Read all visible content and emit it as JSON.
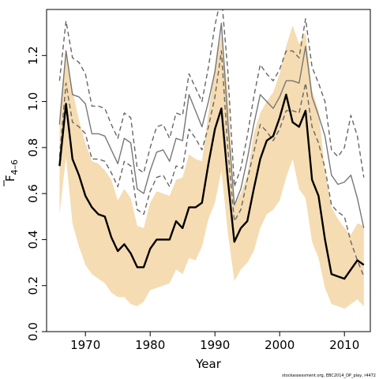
{
  "chart_data": {
    "type": "line",
    "title": "",
    "xlabel": "Year",
    "ylabel": {
      "main": "F",
      "subscript": "4–6"
    },
    "xlim": [
      1964,
      2014
    ],
    "ylim": [
      0,
      1.4
    ],
    "xticks": [
      1970,
      1980,
      1990,
      2000,
      2010
    ],
    "xtick_labels": [
      "1970",
      "1980",
      "1990",
      "2000",
      "2010"
    ],
    "yticks": [
      0.0,
      0.2,
      0.4,
      0.6,
      0.8,
      1.0,
      1.2
    ],
    "ytick_labels": [
      "0.0",
      "0.2",
      "0.4",
      "0.6",
      "0.8",
      "1.0",
      "1.2"
    ],
    "grid": false,
    "legend": "none",
    "colors": {
      "band": "#f5dcb2",
      "estimate": "#000000",
      "comparison": "#777777",
      "comparison_ci": "#666666"
    },
    "x": [
      1966,
      1967,
      1968,
      1969,
      1970,
      1971,
      1972,
      1973,
      1974,
      1975,
      1976,
      1977,
      1978,
      1979,
      1980,
      1981,
      1982,
      1983,
      1984,
      1985,
      1986,
      1987,
      1988,
      1989,
      1990,
      1991,
      1992,
      1993,
      1994,
      1995,
      1996,
      1997,
      1998,
      1999,
      2000,
      2001,
      2002,
      2003,
      2004,
      2005,
      2006,
      2007,
      2008,
      2009,
      2010,
      2011,
      2012,
      2013
    ],
    "series": [
      {
        "role": "band",
        "upper": [
          0.95,
          1.23,
          1.05,
          0.92,
          0.82,
          0.74,
          0.73,
          0.7,
          0.66,
          0.57,
          0.62,
          0.58,
          0.46,
          0.45,
          0.56,
          0.61,
          0.6,
          0.59,
          0.66,
          0.67,
          0.77,
          0.75,
          0.74,
          0.95,
          1.15,
          1.29,
          1.05,
          0.55,
          0.6,
          0.68,
          0.86,
          0.95,
          1.0,
          1.04,
          1.12,
          1.24,
          1.33,
          1.25,
          1.3,
          1.05,
          0.96,
          0.7,
          0.54,
          0.49,
          0.45,
          0.42,
          0.47,
          0.46
        ],
        "lower": [
          0.51,
          0.76,
          0.47,
          0.37,
          0.29,
          0.25,
          0.23,
          0.21,
          0.17,
          0.15,
          0.15,
          0.12,
          0.11,
          0.13,
          0.18,
          0.19,
          0.2,
          0.21,
          0.27,
          0.25,
          0.32,
          0.31,
          0.37,
          0.49,
          0.56,
          0.7,
          0.43,
          0.22,
          0.27,
          0.3,
          0.35,
          0.45,
          0.51,
          0.53,
          0.57,
          0.67,
          0.75,
          0.62,
          0.58,
          0.39,
          0.32,
          0.19,
          0.12,
          0.11,
          0.1,
          0.12,
          0.14,
          0.11
        ]
      },
      {
        "role": "estimate",
        "values": [
          0.72,
          0.99,
          0.75,
          0.68,
          0.59,
          0.54,
          0.51,
          0.5,
          0.41,
          0.35,
          0.38,
          0.34,
          0.28,
          0.28,
          0.36,
          0.4,
          0.4,
          0.4,
          0.48,
          0.45,
          0.54,
          0.54,
          0.56,
          0.73,
          0.88,
          0.97,
          0.66,
          0.39,
          0.45,
          0.48,
          0.62,
          0.75,
          0.83,
          0.85,
          0.93,
          1.03,
          0.91,
          0.89,
          0.96,
          0.66,
          0.59,
          0.4,
          0.25,
          0.24,
          0.23,
          0.27,
          0.31,
          0.29
        ]
      },
      {
        "role": "comparison",
        "values": [
          0.9,
          1.22,
          1.03,
          1.02,
          0.99,
          0.86,
          0.86,
          0.85,
          0.79,
          0.73,
          0.84,
          0.82,
          0.62,
          0.6,
          0.7,
          0.78,
          0.79,
          0.74,
          0.84,
          0.83,
          1.03,
          0.96,
          0.89,
          1.0,
          1.13,
          1.34,
          0.91,
          0.55,
          0.62,
          0.75,
          0.9,
          1.03,
          1.0,
          0.97,
          1.02,
          1.09,
          1.09,
          1.08,
          1.24,
          1.02,
          0.94,
          0.85,
          0.68,
          0.64,
          0.65,
          0.68,
          0.58,
          0.45
        ]
      },
      {
        "role": "comparison_upper",
        "values": [
          1.09,
          1.35,
          1.19,
          1.17,
          1.12,
          0.98,
          0.98,
          0.97,
          0.9,
          0.84,
          0.95,
          0.93,
          0.71,
          0.69,
          0.8,
          0.89,
          0.9,
          0.84,
          0.95,
          0.94,
          1.12,
          1.06,
          1.0,
          1.15,
          1.33,
          1.46,
          1.13,
          0.63,
          0.71,
          0.85,
          1.02,
          1.16,
          1.12,
          1.09,
          1.14,
          1.22,
          1.22,
          1.19,
          1.36,
          1.15,
          1.08,
          1.0,
          0.79,
          0.76,
          0.8,
          0.94,
          0.85,
          0.67
        ]
      },
      {
        "role": "comparison_lower",
        "values": [
          0.76,
          1.08,
          0.91,
          0.89,
          0.86,
          0.75,
          0.75,
          0.74,
          0.69,
          0.63,
          0.74,
          0.72,
          0.53,
          0.51,
          0.61,
          0.67,
          0.68,
          0.63,
          0.72,
          0.71,
          0.88,
          0.84,
          0.79,
          0.89,
          1.02,
          1.22,
          0.79,
          0.48,
          0.53,
          0.66,
          0.78,
          0.9,
          0.87,
          0.83,
          0.88,
          0.96,
          0.96,
          0.95,
          1.08,
          0.89,
          0.82,
          0.71,
          0.55,
          0.52,
          0.5,
          0.39,
          0.31,
          0.24
        ]
      }
    ]
  },
  "footnote": "stockassessment.org, EBC2014_DP_play, r4472"
}
